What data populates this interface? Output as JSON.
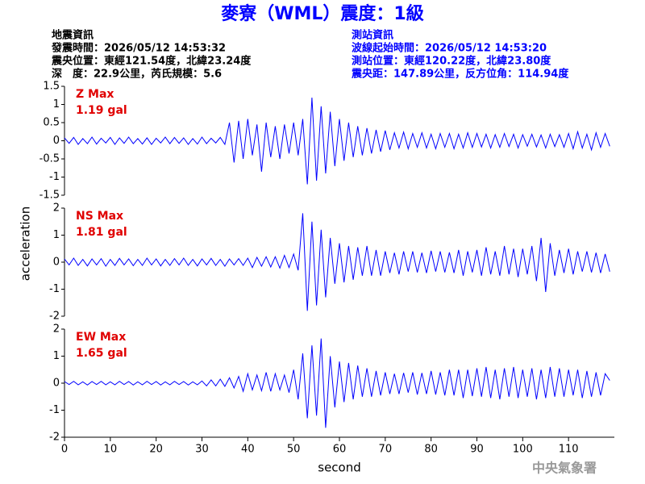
{
  "title": "麥寮（WML）震度：1級",
  "info_left": [
    "地震資訊",
    "發震時間：2026/05/12 14:53:32",
    "震央位置：東經121.54度，北緯23.24度",
    "深　度：22.9公里，芮氏規模：5.6"
  ],
  "info_right": [
    "測站資訊",
    "波線起始時間：2026/05/12 14:53:20",
    "測站位置：東經120.22度，北緯23.80度",
    "震央距：147.89公里，反方位角：114.94度"
  ],
  "footer": "中央氣象署",
  "chart_data": [
    {
      "type": "line",
      "max_label": "Z Max",
      "max_text": "1.19 gal",
      "color": "#0000ff",
      "xlim": [
        0,
        120
      ],
      "ylim": [
        -1.5,
        1.5
      ],
      "yticks": [
        -1.5,
        -1,
        -0.5,
        0,
        0.5,
        1,
        1.5
      ],
      "x": [
        0,
        1,
        2,
        3,
        4,
        5,
        6,
        7,
        8,
        9,
        10,
        11,
        12,
        13,
        14,
        15,
        16,
        17,
        18,
        19,
        20,
        21,
        22,
        23,
        24,
        25,
        26,
        27,
        28,
        29,
        30,
        31,
        32,
        33,
        34,
        35,
        36,
        37,
        38,
        39,
        40,
        41,
        42,
        43,
        44,
        45,
        46,
        47,
        48,
        49,
        50,
        51,
        52,
        53,
        54,
        55,
        56,
        57,
        58,
        59,
        60,
        61,
        62,
        63,
        64,
        65,
        66,
        67,
        68,
        69,
        70,
        71,
        72,
        73,
        74,
        75,
        76,
        77,
        78,
        79,
        80,
        81,
        82,
        83,
        84,
        85,
        86,
        87,
        88,
        89,
        90,
        91,
        92,
        93,
        94,
        95,
        96,
        97,
        98,
        99,
        100,
        101,
        102,
        103,
        104,
        105,
        106,
        107,
        108,
        109,
        110,
        111,
        112,
        113,
        114,
        115,
        116,
        117,
        118,
        119
      ],
      "values": [
        0.08,
        -0.07,
        0.09,
        -0.1,
        0.06,
        -0.08,
        0.1,
        -0.09,
        0.07,
        -0.06,
        0.09,
        -0.1,
        0.08,
        -0.07,
        0.1,
        -0.08,
        0.06,
        -0.09,
        0.08,
        -0.1,
        0.07,
        -0.06,
        0.1,
        -0.08,
        0.09,
        -0.07,
        0.08,
        -0.1,
        0.06,
        -0.09,
        0.1,
        -0.08,
        0.07,
        -0.06,
        0.09,
        -0.1,
        0.5,
        -0.6,
        0.55,
        -0.5,
        0.6,
        -0.4,
        0.45,
        -0.85,
        0.5,
        -0.45,
        0.4,
        -0.5,
        0.45,
        -0.35,
        0.5,
        -0.4,
        0.6,
        -1.2,
        1.19,
        -1.1,
        0.95,
        -0.9,
        0.8,
        -0.7,
        0.6,
        -0.55,
        0.5,
        -0.45,
        0.4,
        -0.4,
        0.35,
        -0.35,
        0.3,
        -0.3,
        0.28,
        -0.25,
        0.22,
        -0.2,
        0.24,
        -0.22,
        0.2,
        -0.18,
        0.22,
        -0.2,
        0.18,
        -0.22,
        0.2,
        -0.18,
        0.2,
        -0.22,
        0.18,
        -0.2,
        0.22,
        -0.18,
        0.2,
        -0.17,
        0.18,
        -0.2,
        0.17,
        -0.18,
        0.2,
        -0.16,
        0.18,
        -0.2,
        0.17,
        -0.15,
        0.18,
        -0.17,
        0.16,
        -0.2,
        0.18,
        -0.16,
        0.17,
        -0.18,
        0.2,
        -0.22,
        0.25,
        -0.2,
        0.18,
        -0.25,
        0.22,
        -0.18,
        0.2,
        -0.15
      ]
    },
    {
      "type": "line",
      "max_label": "NS Max",
      "max_text": "1.81 gal",
      "color": "#0000ff",
      "ylabel": "acceleration",
      "xlim": [
        0,
        120
      ],
      "ylim": [
        -2,
        2
      ],
      "yticks": [
        -2,
        -1,
        0,
        1,
        2
      ],
      "x": [
        0,
        1,
        2,
        3,
        4,
        5,
        6,
        7,
        8,
        9,
        10,
        11,
        12,
        13,
        14,
        15,
        16,
        17,
        18,
        19,
        20,
        21,
        22,
        23,
        24,
        25,
        26,
        27,
        28,
        29,
        30,
        31,
        32,
        33,
        34,
        35,
        36,
        37,
        38,
        39,
        40,
        41,
        42,
        43,
        44,
        45,
        46,
        47,
        48,
        49,
        50,
        51,
        52,
        53,
        54,
        55,
        56,
        57,
        58,
        59,
        60,
        61,
        62,
        63,
        64,
        65,
        66,
        67,
        68,
        69,
        70,
        71,
        72,
        73,
        74,
        75,
        76,
        77,
        78,
        79,
        80,
        81,
        82,
        83,
        84,
        85,
        86,
        87,
        88,
        89,
        90,
        91,
        92,
        93,
        94,
        95,
        96,
        97,
        98,
        99,
        100,
        101,
        102,
        103,
        104,
        105,
        106,
        107,
        108,
        109,
        110,
        111,
        112,
        113,
        114,
        115,
        116,
        117,
        118,
        119
      ],
      "values": [
        0.12,
        -0.1,
        0.15,
        -0.12,
        0.1,
        -0.14,
        0.12,
        -0.1,
        0.13,
        -0.15,
        0.1,
        -0.12,
        0.14,
        -0.1,
        0.12,
        -0.13,
        0.1,
        -0.12,
        0.15,
        -0.1,
        0.12,
        -0.14,
        0.1,
        -0.12,
        0.13,
        -0.1,
        0.15,
        -0.12,
        0.1,
        -0.14,
        0.12,
        -0.1,
        0.14,
        -0.12,
        0.1,
        -0.15,
        0.12,
        -0.1,
        0.13,
        -0.12,
        0.15,
        -0.2,
        0.18,
        -0.15,
        0.2,
        -0.18,
        0.2,
        -0.22,
        0.25,
        -0.2,
        0.3,
        -0.3,
        1.81,
        -1.8,
        1.5,
        -1.6,
        1.2,
        -1.3,
        0.9,
        -0.8,
        0.7,
        -0.75,
        0.6,
        -0.65,
        0.55,
        -0.5,
        0.6,
        -0.5,
        0.45,
        -0.5,
        0.4,
        -0.4,
        0.35,
        -0.45,
        0.4,
        -0.35,
        0.4,
        -0.38,
        0.35,
        -0.4,
        0.42,
        -0.35,
        0.4,
        -0.38,
        0.36,
        -0.4,
        0.45,
        -0.5,
        0.4,
        -0.38,
        0.45,
        -0.5,
        0.55,
        -0.45,
        0.4,
        -0.5,
        0.6,
        -0.45,
        0.5,
        -0.55,
        0.5,
        -0.45,
        0.6,
        -0.7,
        0.9,
        -1.1,
        0.7,
        -0.5,
        0.45,
        -0.4,
        0.5,
        -0.45,
        0.4,
        -0.35,
        0.4,
        -0.38,
        0.35,
        -0.4,
        0.3,
        -0.35
      ]
    },
    {
      "type": "line",
      "max_label": "EW Max",
      "max_text": "1.65 gal",
      "color": "#0000ff",
      "xlabel": "second",
      "xlim": [
        0,
        120
      ],
      "xticks": [
        0,
        10,
        20,
        30,
        40,
        50,
        60,
        70,
        80,
        90,
        100,
        110
      ],
      "ylim": [
        -2,
        2
      ],
      "yticks": [
        -2,
        -1,
        0,
        1,
        2
      ],
      "x": [
        0,
        1,
        2,
        3,
        4,
        5,
        6,
        7,
        8,
        9,
        10,
        11,
        12,
        13,
        14,
        15,
        16,
        17,
        18,
        19,
        20,
        21,
        22,
        23,
        24,
        25,
        26,
        27,
        28,
        29,
        30,
        31,
        32,
        33,
        34,
        35,
        36,
        37,
        38,
        39,
        40,
        41,
        42,
        43,
        44,
        45,
        46,
        47,
        48,
        49,
        50,
        51,
        52,
        53,
        54,
        55,
        56,
        57,
        58,
        59,
        60,
        61,
        62,
        63,
        64,
        65,
        66,
        67,
        68,
        69,
        70,
        71,
        72,
        73,
        74,
        75,
        76,
        77,
        78,
        79,
        80,
        81,
        82,
        83,
        84,
        85,
        86,
        87,
        88,
        89,
        90,
        91,
        92,
        93,
        94,
        95,
        96,
        97,
        98,
        99,
        100,
        101,
        102,
        103,
        104,
        105,
        106,
        107,
        108,
        109,
        110,
        111,
        112,
        113,
        114,
        115,
        116,
        117,
        118,
        119
      ],
      "values": [
        0.06,
        -0.05,
        0.07,
        -0.06,
        0.05,
        -0.07,
        0.06,
        -0.05,
        0.07,
        -0.06,
        0.05,
        -0.06,
        0.07,
        -0.05,
        0.06,
        -0.07,
        0.05,
        -0.06,
        0.07,
        -0.05,
        0.06,
        -0.07,
        0.05,
        -0.06,
        0.07,
        -0.05,
        0.06,
        -0.07,
        0.05,
        -0.06,
        0.08,
        -0.1,
        0.12,
        -0.1,
        0.15,
        -0.12,
        0.2,
        -0.18,
        0.25,
        -0.3,
        0.35,
        -0.25,
        0.3,
        -0.28,
        0.4,
        -0.3,
        0.35,
        -0.25,
        0.3,
        -0.35,
        0.5,
        -0.6,
        1.1,
        -1.3,
        1.4,
        -1.2,
        1.65,
        -1.65,
        1.0,
        -0.9,
        0.8,
        -0.7,
        0.75,
        -0.6,
        0.65,
        -0.5,
        0.55,
        -0.5,
        0.45,
        -0.45,
        0.4,
        -0.4,
        0.35,
        -0.4,
        0.38,
        -0.35,
        0.4,
        -0.42,
        0.38,
        -0.4,
        0.45,
        -0.42,
        0.4,
        -0.45,
        0.5,
        -0.45,
        0.5,
        -0.55,
        0.5,
        -0.48,
        0.55,
        -0.5,
        0.6,
        -0.55,
        0.5,
        -0.6,
        0.55,
        -0.5,
        0.6,
        -0.55,
        0.5,
        -0.5,
        0.55,
        -0.6,
        0.5,
        -0.55,
        0.6,
        -0.5,
        0.55,
        -0.5,
        0.5,
        -0.45,
        0.5,
        -0.55,
        0.45,
        -0.5,
        0.4,
        -0.45,
        0.35,
        0.1
      ]
    }
  ]
}
